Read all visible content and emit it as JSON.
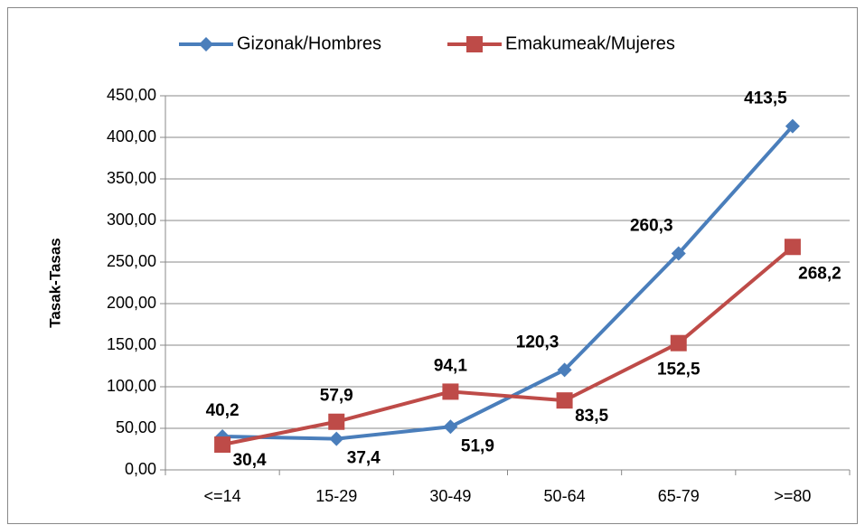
{
  "chart_data": {
    "type": "line",
    "y_label": "Tasak-Tasas",
    "categories": [
      "<=14",
      "15-29",
      "30-49",
      "50-64",
      "65-79",
      ">=80"
    ],
    "series": [
      {
        "name": "Gizonak/Hombres",
        "color": "#4a7ebb",
        "marker": "diamond",
        "values": [
          40.2,
          37.4,
          51.9,
          120.3,
          260.3,
          413.5
        ],
        "value_labels": [
          "40,2",
          "37,4",
          "51,9",
          "120,3",
          "260,3",
          "413,5"
        ]
      },
      {
        "name": "Emakumeak/Mujeres",
        "color": "#be4b48",
        "marker": "square",
        "values": [
          30.4,
          57.9,
          94.1,
          83.5,
          152.5,
          268.2
        ],
        "value_labels": [
          "30,4",
          "57,9",
          "94,1",
          "83,5",
          "152,5",
          "268,2"
        ]
      }
    ],
    "ylim": [
      0,
      450
    ],
    "yticks": [
      {
        "value": 0,
        "label": "0,00"
      },
      {
        "value": 50,
        "label": "50,00"
      },
      {
        "value": 100,
        "label": "100,00"
      },
      {
        "value": 150,
        "label": "150,00"
      },
      {
        "value": 200,
        "label": "200,00"
      },
      {
        "value": 250,
        "label": "250,00"
      },
      {
        "value": 300,
        "label": "300,00"
      },
      {
        "value": 350,
        "label": "350,00"
      },
      {
        "value": 400,
        "label": "400,00"
      },
      {
        "value": 450,
        "label": "450,00"
      }
    ],
    "grid": true,
    "legend": "top"
  }
}
